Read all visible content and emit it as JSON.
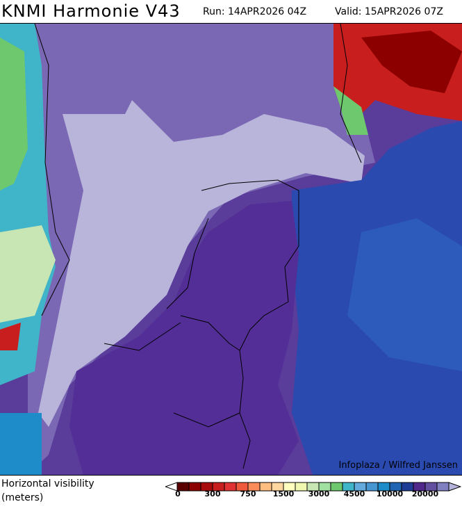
{
  "header": {
    "title": "KNMI Harmonie V43",
    "run": "Run: 14APR2026 04Z",
    "valid": "Valid: 15APR2026 07Z"
  },
  "map": {
    "credit": "Infoplaza / Wilfred Janssen",
    "region": "Netherlands, Belgium and surroundings"
  },
  "legend": {
    "variable_line1": "Horizontal visibility",
    "variable_line2": "(meters)",
    "tick_labels": [
      "0",
      "300",
      "750",
      "1500",
      "3000",
      "4500",
      "10000",
      "20000"
    ],
    "colors": [
      "#5a0000",
      "#8c0000",
      "#a80c0c",
      "#c81e1e",
      "#e03232",
      "#ef5a3c",
      "#fa8c5a",
      "#fdbe80",
      "#fdd6a0",
      "#ffffc0",
      "#f0f8b0",
      "#c8e6b4",
      "#a0e0a0",
      "#6ec86e",
      "#40b4c8",
      "#64aadc",
      "#4696d2",
      "#1e8cc8",
      "#2064b4",
      "#1e3c96",
      "#50288c",
      "#6450a0",
      "#8080c0"
    ],
    "under_color": "#ffffff",
    "over_color": "#b4b4dc"
  }
}
